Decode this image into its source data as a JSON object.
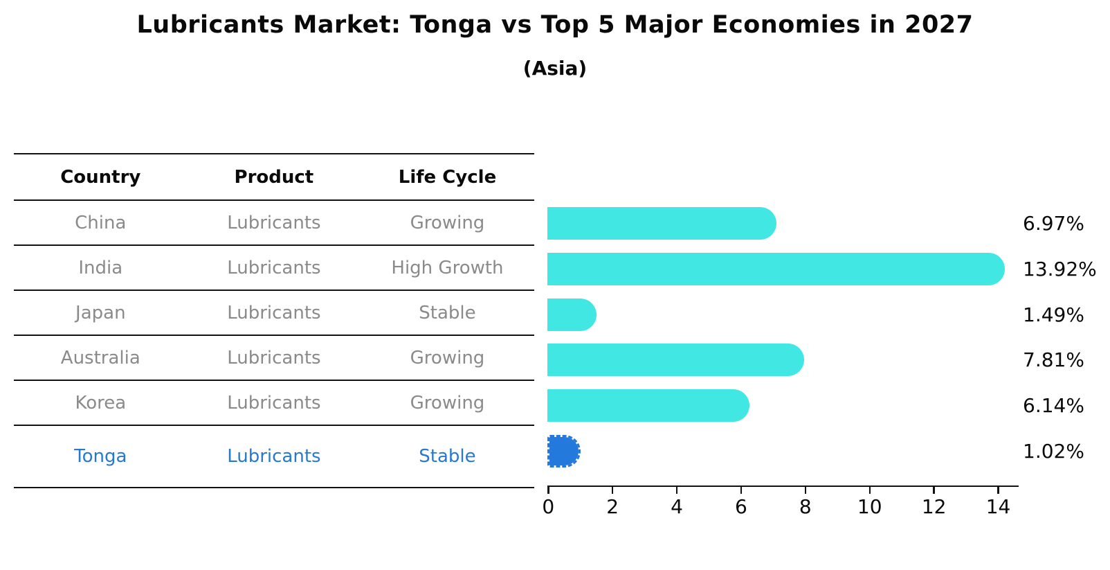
{
  "title": "Lubricants Market: Tonga vs Top 5 Major Economies in 2027",
  "subtitle": "(Asia)",
  "table": {
    "headers": [
      "Country",
      "Product",
      "Life Cycle"
    ],
    "rows": [
      {
        "country": "China",
        "product": "Lubricants",
        "life_cycle": "Growing"
      },
      {
        "country": "India",
        "product": "Lubricants",
        "life_cycle": "High Growth"
      },
      {
        "country": "Japan",
        "product": "Lubricants",
        "life_cycle": "Stable"
      },
      {
        "country": "Australia",
        "product": "Lubricants",
        "life_cycle": "Growing"
      },
      {
        "country": "Korea",
        "product": "Lubricants",
        "life_cycle": "Growing"
      },
      {
        "country": "Tonga",
        "product": "Lubricants",
        "life_cycle": "Stable"
      }
    ]
  },
  "chart_data": {
    "type": "bar",
    "orientation": "horizontal",
    "title": "Lubricants Market: Tonga vs Top 5 Major Economies in 2027",
    "subtitle": "(Asia)",
    "categories": [
      "China",
      "India",
      "Japan",
      "Australia",
      "Korea",
      "Tonga"
    ],
    "values": [
      6.97,
      13.92,
      1.49,
      7.81,
      6.14,
      1.02
    ],
    "value_labels": [
      "6.97%",
      "13.92%",
      "1.49%",
      "7.81%",
      "6.14%",
      "1.02%"
    ],
    "unit": "%",
    "x_ticks": [
      0,
      2,
      4,
      6,
      8,
      10,
      12,
      14
    ],
    "xlim": [
      0,
      14.65
    ],
    "grid": false,
    "legend": "none",
    "highlight_category": "Tonga",
    "highlight_index": 5
  },
  "colors": {
    "bar_fill": "#40e7e3",
    "highlight_bar_fill": "#2379dc",
    "highlight_text": "#2878d0",
    "table_text": "#8a8a8a"
  }
}
